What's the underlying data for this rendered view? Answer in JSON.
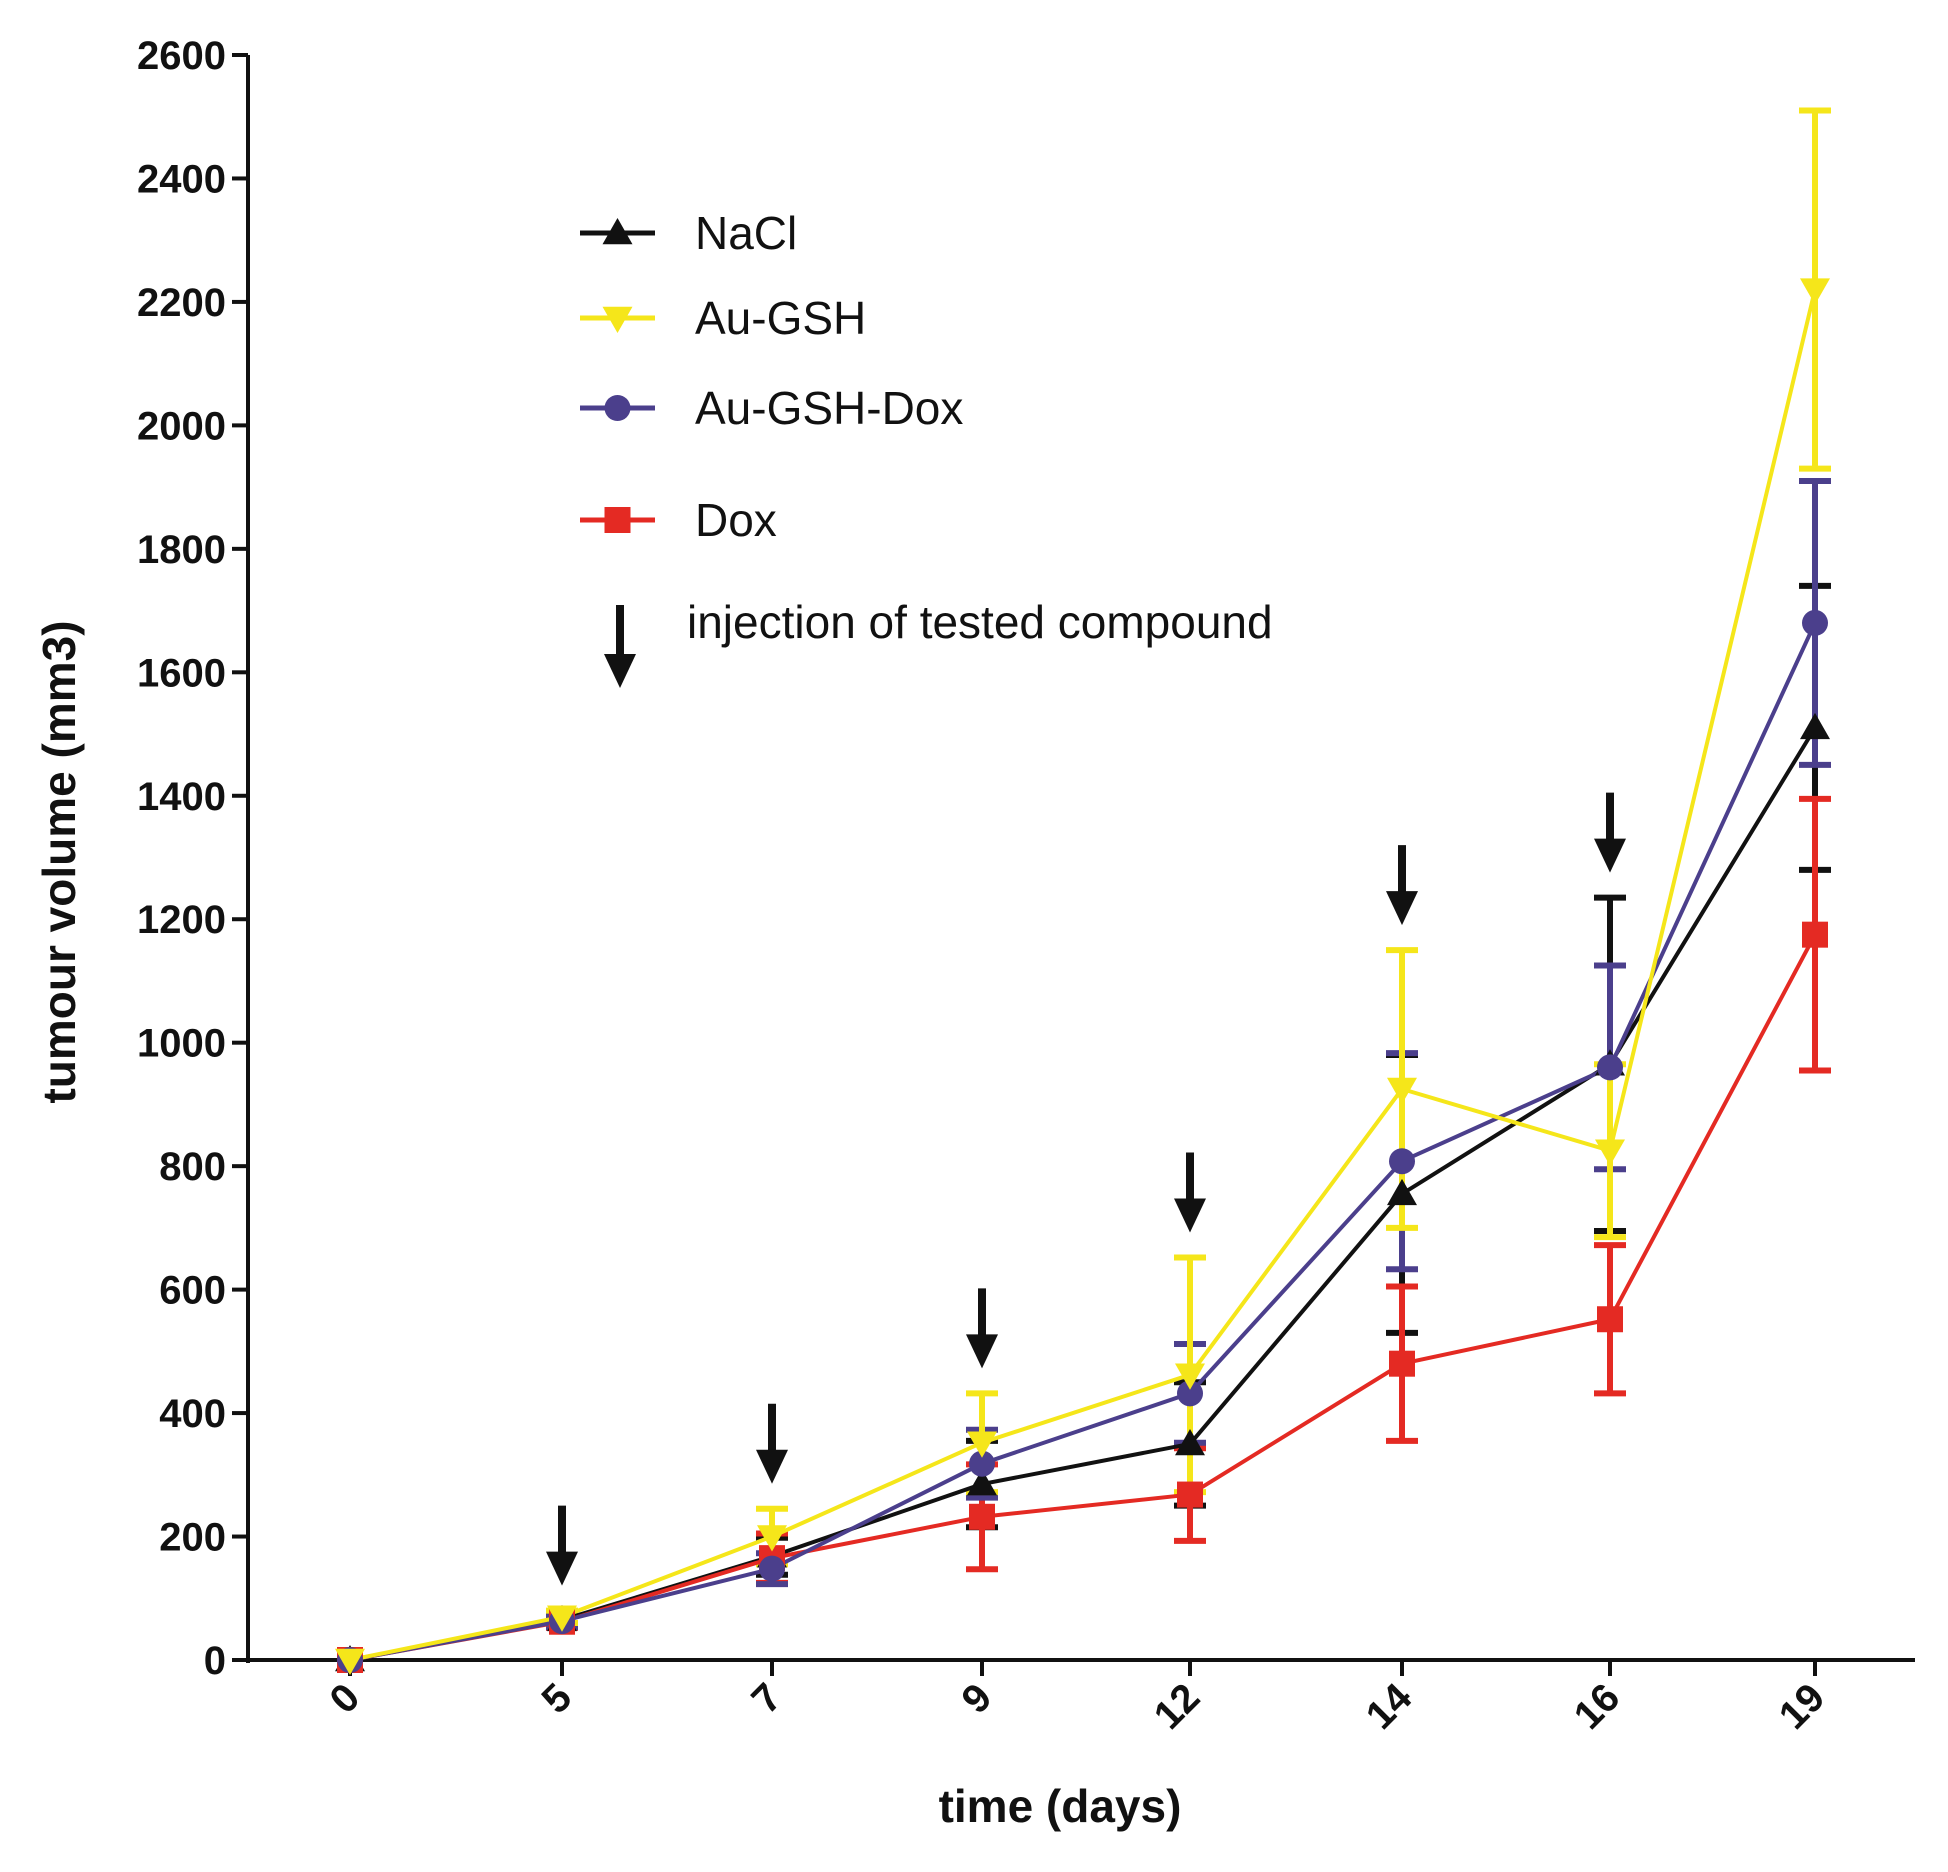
{
  "chart_data": {
    "type": "line",
    "title": "",
    "xlabel": "time (days)",
    "ylabel": "tumour volume (mm3)",
    "categories": [
      "0",
      "5",
      "7",
      "9",
      "12",
      "14",
      "16",
      "19"
    ],
    "ylim": [
      0,
      2600
    ],
    "yticks": [
      0,
      200,
      400,
      600,
      800,
      1000,
      1200,
      1400,
      1600,
      1800,
      2000,
      2200,
      2400,
      2600
    ],
    "grid": false,
    "legend_position": "upper-left",
    "series": [
      {
        "name": "NaCl",
        "color": "#111111",
        "marker": "triangle-up",
        "values": [
          0,
          65,
          168,
          285,
          350,
          755,
          965,
          1510
        ],
        "errors": [
          0,
          10,
          30,
          70,
          100,
          225,
          270,
          230
        ]
      },
      {
        "name": "Au-GSH",
        "color": "#f5e61a",
        "marker": "triangle-down",
        "values": [
          0,
          70,
          200,
          352,
          462,
          925,
          825,
          2220
        ],
        "errors": [
          0,
          10,
          45,
          80,
          190,
          225,
          140,
          290
        ]
      },
      {
        "name": "Au-GSH-Dox",
        "color": "#4b3f8c",
        "marker": "circle",
        "values": [
          0,
          63,
          148,
          318,
          432,
          808,
          960,
          1680
        ],
        "errors": [
          0,
          10,
          25,
          55,
          80,
          175,
          165,
          230
        ]
      },
      {
        "name": "Dox",
        "color": "#e42a23",
        "marker": "square",
        "values": [
          0,
          62,
          165,
          232,
          268,
          480,
          552,
          1175
        ],
        "errors": [
          0,
          10,
          40,
          85,
          75,
          125,
          120,
          220
        ]
      }
    ],
    "injection_days": [
      "5",
      "7",
      "9",
      "12",
      "14",
      "16"
    ],
    "annotation": "injection of tested compound"
  }
}
